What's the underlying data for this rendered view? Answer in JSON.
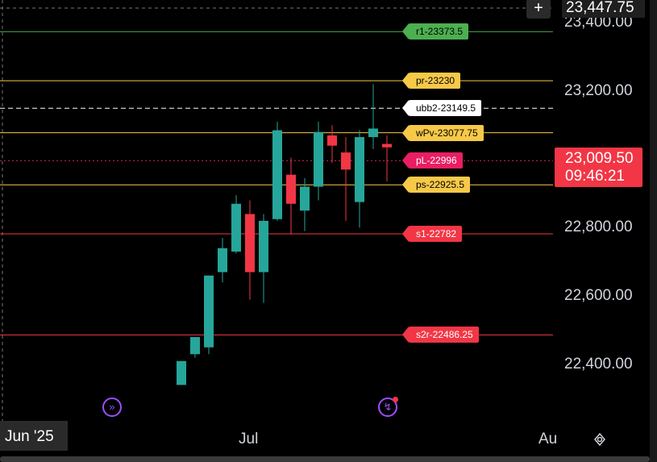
{
  "chart_data": {
    "type": "candlestick",
    "price_axis": {
      "ticks": [
        "23,400.00",
        "23,200.00",
        "23,000.00",
        "22,800.00",
        "22,600.00",
        "22,400.00"
      ],
      "tick_values": [
        23400,
        23200,
        23000,
        22800,
        22600,
        22400
      ]
    },
    "time_axis": {
      "labels": [
        "Jun '25",
        "Jul",
        "Au"
      ]
    },
    "candles": [
      {
        "o": 22340,
        "h": 22410,
        "l": 22340,
        "c": 22410
      },
      {
        "o": 22430,
        "h": 22480,
        "l": 22420,
        "c": 22480
      },
      {
        "o": 22450,
        "h": 22660,
        "l": 22430,
        "c": 22660
      },
      {
        "o": 22670,
        "h": 22770,
        "l": 22640,
        "c": 22740
      },
      {
        "o": 22730,
        "h": 22895,
        "l": 22725,
        "c": 22870
      },
      {
        "o": 22840,
        "h": 22880,
        "l": 22590,
        "c": 22670
      },
      {
        "o": 22670,
        "h": 22840,
        "l": 22580,
        "c": 22820
      },
      {
        "o": 22825,
        "h": 23110,
        "l": 22820,
        "c": 23085
      },
      {
        "o": 22955,
        "h": 23005,
        "l": 22780,
        "c": 22870
      },
      {
        "o": 22850,
        "h": 22945,
        "l": 22790,
        "c": 22920
      },
      {
        "o": 22920,
        "h": 23110,
        "l": 22880,
        "c": 23080
      },
      {
        "o": 23070,
        "h": 23100,
        "l": 22990,
        "c": 23040
      },
      {
        "o": 23020,
        "h": 23065,
        "l": 22820,
        "c": 22970
      },
      {
        "o": 22875,
        "h": 23085,
        "l": 22800,
        "c": 23065
      },
      {
        "o": 23065,
        "h": 23220,
        "l": 23030,
        "c": 23090
      },
      {
        "o": 23045,
        "h": 23070,
        "l": 22935,
        "c": 23035
      }
    ],
    "levels": [
      {
        "label": "r1-23373.5",
        "value": 23373.5,
        "color": "#4caf50",
        "text_color": "#000"
      },
      {
        "label": "pr-23230",
        "value": 23230,
        "color": "#f7c948",
        "text_color": "#000"
      },
      {
        "label": "ubb2-23149.5",
        "value": 23149.5,
        "color": "#ffffff",
        "text_color": "#000",
        "dashed": true
      },
      {
        "label": "wPv-23077.75",
        "value": 23077.75,
        "color": "#f7c948",
        "text_color": "#000"
      },
      {
        "label": "pL-22996",
        "value": 22996,
        "color": "#e91e63",
        "text_color": "#fff",
        "dotted": true
      },
      {
        "label": "ps-22925.5",
        "value": 22925.5,
        "color": "#f7c948",
        "text_color": "#000"
      },
      {
        "label": "s1-22782",
        "value": 22782,
        "color": "#f23645",
        "text_color": "#fff"
      },
      {
        "label": "s2r-22486.25",
        "value": 22486.25,
        "color": "#f23645",
        "text_color": "#fff"
      }
    ],
    "last_price": "23,009.50",
    "countdown": "09:46:21",
    "top_price": "23,447.75"
  },
  "ui": {
    "plus_icon": "+",
    "date_box": "Jun '25",
    "settings_icon": "settings-icon"
  },
  "colors": {
    "up": "#26a69a",
    "down": "#f23645",
    "accent_purple": "#9c4dff"
  }
}
